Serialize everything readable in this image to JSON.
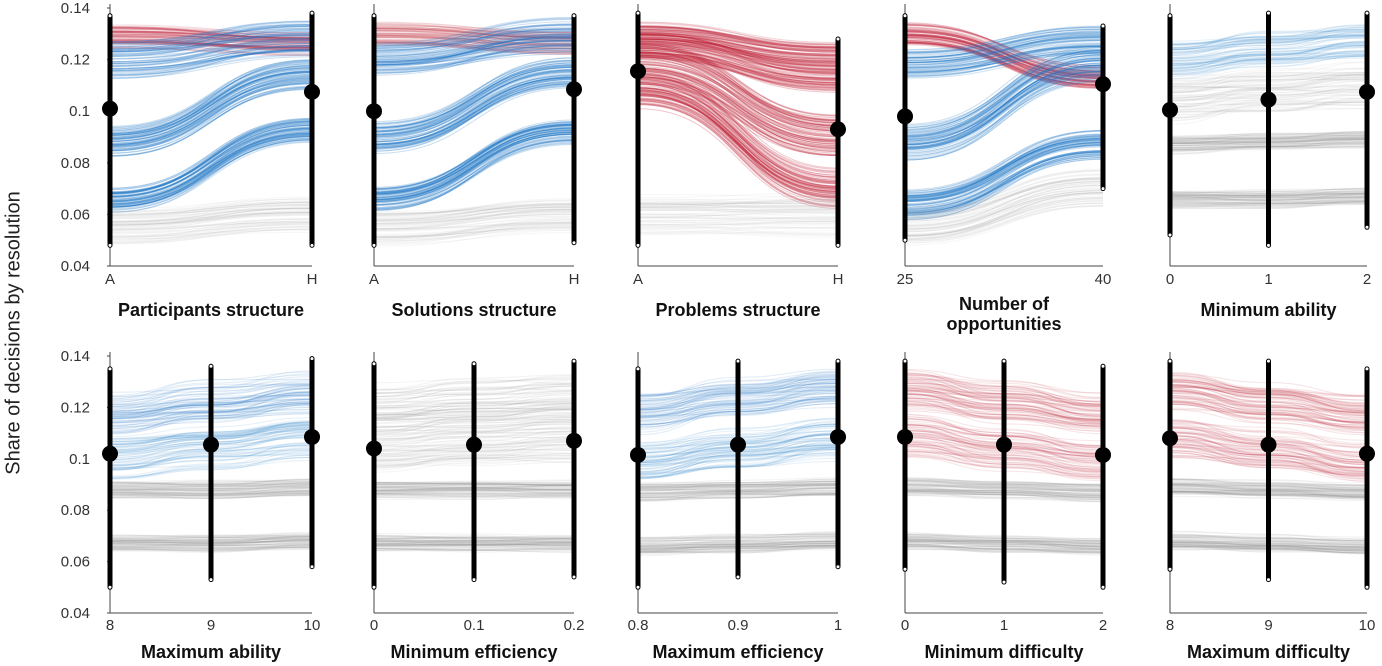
{
  "figure": {
    "ylabel": "Share of decisions by resolution",
    "colors": {
      "blue": "#1f77c4",
      "red": "#c0283c",
      "gray": "#8c8c8c",
      "dot": "#000000",
      "axis": "#444444"
    }
  },
  "chart_data": [
    {
      "type": "line",
      "title": "Participants structure",
      "categories": [
        "A",
        "H"
      ],
      "means": [
        0.101,
        0.1075
      ],
      "ylim": [
        0.04,
        0.14
      ],
      "yticks": [
        0.04,
        0.06,
        0.08,
        0.1,
        0.12,
        0.14
      ],
      "range": [
        [
          0.048,
          0.137
        ],
        [
          0.048,
          0.138
        ]
      ],
      "bands": [
        {
          "color": "red",
          "values": [
            0.129,
            0.126
          ],
          "spread": 0.004,
          "opacity": 0.5
        },
        {
          "color": "blue",
          "values": [
            0.12,
            0.128
          ],
          "spread": 0.006,
          "opacity": 0.6
        },
        {
          "color": "blue",
          "values": [
            0.088,
            0.114
          ],
          "spread": 0.005,
          "opacity": 0.65
        },
        {
          "color": "blue",
          "values": [
            0.066,
            0.093
          ],
          "spread": 0.004,
          "opacity": 0.65
        },
        {
          "color": "gray",
          "values": [
            0.055,
            0.06
          ],
          "spread": 0.006,
          "opacity": 0.2
        }
      ]
    },
    {
      "type": "line",
      "title": "Solutions structure",
      "categories": [
        "A",
        "H"
      ],
      "means": [
        0.1,
        0.1085
      ],
      "ylim": [
        0.04,
        0.14
      ],
      "yticks": [],
      "range": [
        [
          0.048,
          0.137
        ],
        [
          0.049,
          0.137
        ]
      ],
      "bands": [
        {
          "color": "red",
          "values": [
            0.13,
            0.127
          ],
          "spread": 0.004,
          "opacity": 0.4
        },
        {
          "color": "blue",
          "values": [
            0.12,
            0.129
          ],
          "spread": 0.006,
          "opacity": 0.6
        },
        {
          "color": "blue",
          "values": [
            0.09,
            0.115
          ],
          "spread": 0.005,
          "opacity": 0.65
        },
        {
          "color": "blue",
          "values": [
            0.066,
            0.092
          ],
          "spread": 0.004,
          "opacity": 0.65
        },
        {
          "color": "gray",
          "values": [
            0.055,
            0.06
          ],
          "spread": 0.006,
          "opacity": 0.2
        }
      ]
    },
    {
      "type": "line",
      "title": "Problems structure",
      "categories": [
        "A",
        "H"
      ],
      "means": [
        0.1155,
        0.093
      ],
      "ylim": [
        0.04,
        0.14
      ],
      "yticks": [],
      "range": [
        [
          0.048,
          0.138
        ],
        [
          0.048,
          0.128
        ]
      ],
      "bands": [
        {
          "color": "red",
          "values": [
            0.13,
            0.122
          ],
          "spread": 0.004,
          "opacity": 0.55
        },
        {
          "color": "red",
          "values": [
            0.125,
            0.113
          ],
          "spread": 0.005,
          "opacity": 0.7
        },
        {
          "color": "red",
          "values": [
            0.117,
            0.09
          ],
          "spread": 0.008,
          "opacity": 0.75
        },
        {
          "color": "red",
          "values": [
            0.108,
            0.07
          ],
          "spread": 0.007,
          "opacity": 0.7
        },
        {
          "color": "gray",
          "values": [
            0.06,
            0.06
          ],
          "spread": 0.007,
          "opacity": 0.18
        }
      ]
    },
    {
      "type": "line",
      "title": "Number of opportunities",
      "categories": [
        "25",
        "40"
      ],
      "means": [
        0.098,
        0.1105
      ],
      "ylim": [
        0.04,
        0.14
      ],
      "yticks": [],
      "range": [
        [
          0.05,
          0.137
        ],
        [
          0.07,
          0.133
        ]
      ],
      "bands": [
        {
          "color": "red",
          "values": [
            0.13,
            0.113
          ],
          "spread": 0.004,
          "opacity": 0.6
        },
        {
          "color": "blue",
          "values": [
            0.118,
            0.127
          ],
          "spread": 0.005,
          "opacity": 0.55
        },
        {
          "color": "blue",
          "values": [
            0.088,
            0.118
          ],
          "spread": 0.006,
          "opacity": 0.65
        },
        {
          "color": "blue",
          "values": [
            0.064,
            0.087
          ],
          "spread": 0.005,
          "opacity": 0.65
        },
        {
          "color": "gray",
          "values": [
            0.055,
            0.07
          ],
          "spread": 0.006,
          "opacity": 0.2
        }
      ]
    },
    {
      "type": "line",
      "title": "Minimum ability",
      "categories": [
        "0",
        "1",
        "2"
      ],
      "means": [
        0.1005,
        0.1045,
        0.1075
      ],
      "ylim": [
        0.04,
        0.14
      ],
      "yticks": [],
      "range": [
        [
          0.052,
          0.137
        ],
        [
          0.048,
          0.138
        ],
        [
          0.055,
          0.138
        ]
      ],
      "bands": [
        {
          "color": "blue",
          "values": [
            0.12,
            0.124,
            0.127
          ],
          "spread": 0.006,
          "opacity": 0.3
        },
        {
          "color": "gray",
          "values": [
            0.105,
            0.108,
            0.11
          ],
          "spread": 0.008,
          "opacity": 0.22
        },
        {
          "color": "gray",
          "values": [
            0.087,
            0.088,
            0.089
          ],
          "spread": 0.003,
          "opacity": 0.3
        },
        {
          "color": "gray",
          "values": [
            0.066,
            0.066,
            0.067
          ],
          "spread": 0.003,
          "opacity": 0.3
        }
      ]
    },
    {
      "type": "line",
      "title": "Maximum ability",
      "categories": [
        "8",
        "9",
        "10"
      ],
      "means": [
        0.102,
        0.1055,
        0.1085
      ],
      "ylim": [
        0.04,
        0.14
      ],
      "yticks": [
        0.04,
        0.06,
        0.08,
        0.1,
        0.12,
        0.14
      ],
      "range": [
        [
          0.05,
          0.135
        ],
        [
          0.053,
          0.136
        ],
        [
          0.058,
          0.139
        ]
      ],
      "bands": [
        {
          "color": "blue",
          "values": [
            0.118,
            0.122,
            0.126
          ],
          "spread": 0.007,
          "opacity": 0.35
        },
        {
          "color": "blue",
          "values": [
            0.1,
            0.104,
            0.108
          ],
          "spread": 0.007,
          "opacity": 0.3
        },
        {
          "color": "gray",
          "values": [
            0.088,
            0.088,
            0.089
          ],
          "spread": 0.003,
          "opacity": 0.3
        },
        {
          "color": "gray",
          "values": [
            0.067,
            0.067,
            0.068
          ],
          "spread": 0.003,
          "opacity": 0.3
        }
      ]
    },
    {
      "type": "line",
      "title": "Minimum efficiency",
      "categories": [
        "0",
        "0.1",
        "0.2"
      ],
      "means": [
        0.104,
        0.1055,
        0.107
      ],
      "ylim": [
        0.04,
        0.14
      ],
      "yticks": [],
      "range": [
        [
          0.05,
          0.137
        ],
        [
          0.053,
          0.137
        ],
        [
          0.054,
          0.138
        ]
      ],
      "bands": [
        {
          "color": "gray",
          "values": [
            0.12,
            0.122,
            0.124
          ],
          "spread": 0.008,
          "opacity": 0.28
        },
        {
          "color": "gray",
          "values": [
            0.104,
            0.106,
            0.108
          ],
          "spread": 0.008,
          "opacity": 0.22
        },
        {
          "color": "gray",
          "values": [
            0.088,
            0.088,
            0.088
          ],
          "spread": 0.003,
          "opacity": 0.3
        },
        {
          "color": "gray",
          "values": [
            0.067,
            0.067,
            0.067
          ],
          "spread": 0.003,
          "opacity": 0.3
        }
      ]
    },
    {
      "type": "line",
      "title": "Maximum efficiency",
      "categories": [
        "0.8",
        "0.9",
        "1"
      ],
      "means": [
        0.1015,
        0.1055,
        0.1085
      ],
      "ylim": [
        0.04,
        0.14
      ],
      "yticks": [],
      "range": [
        [
          0.05,
          0.135
        ],
        [
          0.054,
          0.138
        ],
        [
          0.058,
          0.138
        ]
      ],
      "bands": [
        {
          "color": "blue",
          "values": [
            0.118,
            0.123,
            0.127
          ],
          "spread": 0.007,
          "opacity": 0.35
        },
        {
          "color": "blue",
          "values": [
            0.099,
            0.104,
            0.108
          ],
          "spread": 0.007,
          "opacity": 0.3
        },
        {
          "color": "gray",
          "values": [
            0.087,
            0.088,
            0.089
          ],
          "spread": 0.003,
          "opacity": 0.3
        },
        {
          "color": "gray",
          "values": [
            0.066,
            0.067,
            0.068
          ],
          "spread": 0.003,
          "opacity": 0.3
        }
      ]
    },
    {
      "type": "line",
      "title": "Minimum difficulty",
      "categories": [
        "0",
        "1",
        "2"
      ],
      "means": [
        0.1085,
        0.1055,
        0.1015
      ],
      "ylim": [
        0.04,
        0.14
      ],
      "yticks": [],
      "range": [
        [
          0.057,
          0.138
        ],
        [
          0.052,
          0.138
        ],
        [
          0.05,
          0.136
        ]
      ],
      "bands": [
        {
          "color": "red",
          "values": [
            0.127,
            0.122,
            0.117
          ],
          "spread": 0.007,
          "opacity": 0.35
        },
        {
          "color": "red",
          "values": [
            0.109,
            0.104,
            0.099
          ],
          "spread": 0.007,
          "opacity": 0.3
        },
        {
          "color": "gray",
          "values": [
            0.089,
            0.088,
            0.087
          ],
          "spread": 0.003,
          "opacity": 0.3
        },
        {
          "color": "gray",
          "values": [
            0.068,
            0.067,
            0.066
          ],
          "spread": 0.003,
          "opacity": 0.3
        }
      ]
    },
    {
      "type": "line",
      "title": "Maximum difficulty",
      "categories": [
        "8",
        "9",
        "10"
      ],
      "means": [
        0.108,
        0.1055,
        0.102
      ],
      "ylim": [
        0.04,
        0.14
      ],
      "yticks": [],
      "range": [
        [
          0.057,
          0.138
        ],
        [
          0.053,
          0.138
        ],
        [
          0.05,
          0.135
        ]
      ],
      "bands": [
        {
          "color": "red",
          "values": [
            0.127,
            0.122,
            0.117
          ],
          "spread": 0.007,
          "opacity": 0.35
        },
        {
          "color": "red",
          "values": [
            0.109,
            0.104,
            0.099
          ],
          "spread": 0.007,
          "opacity": 0.3
        },
        {
          "color": "gray",
          "values": [
            0.089,
            0.088,
            0.087
          ],
          "spread": 0.003,
          "opacity": 0.3
        },
        {
          "color": "gray",
          "values": [
            0.068,
            0.067,
            0.066
          ],
          "spread": 0.003,
          "opacity": 0.3
        }
      ]
    }
  ]
}
